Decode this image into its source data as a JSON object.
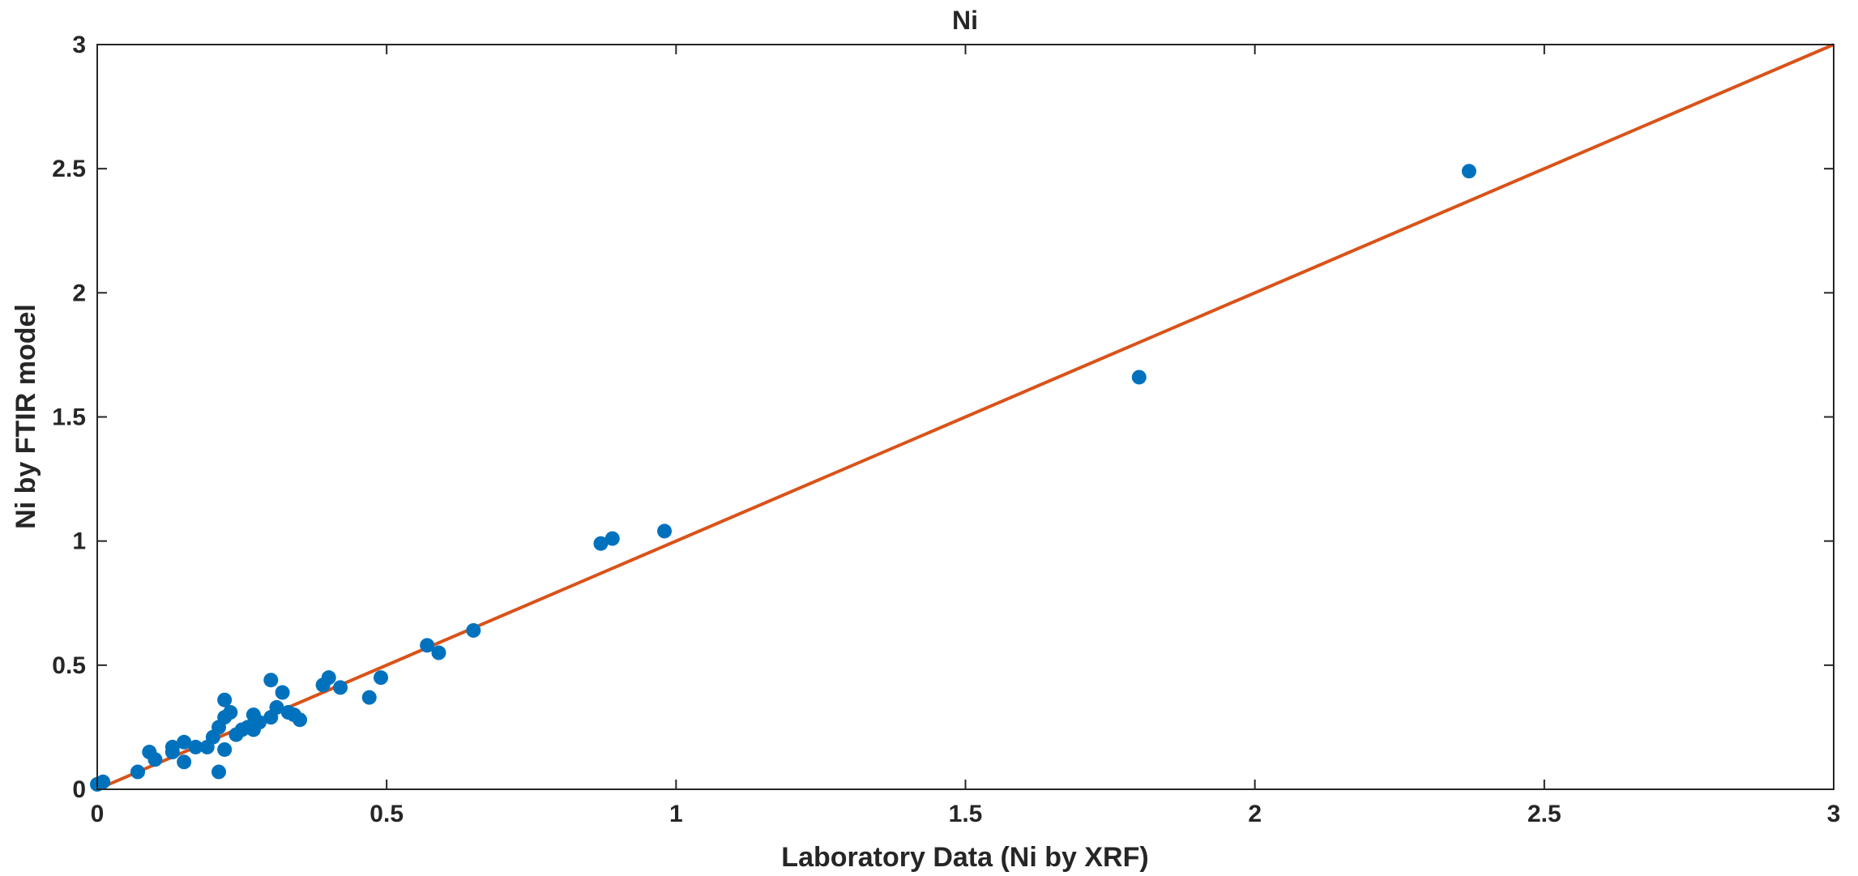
{
  "chart_data": {
    "type": "scatter",
    "title": "Ni",
    "xlabel": "Laboratory Data (Ni by XRF)",
    "ylabel": "Ni by FTIR model",
    "xlim": [
      0,
      3
    ],
    "ylim": [
      0,
      3
    ],
    "xticks": [
      0,
      0.5,
      1,
      1.5,
      2,
      2.5,
      3
    ],
    "xtick_labels": [
      "0",
      "0.5",
      "1",
      "1.5",
      "2",
      "2.5",
      "3"
    ],
    "yticks": [
      0,
      0.5,
      1,
      1.5,
      2,
      2.5,
      3
    ],
    "ytick_labels": [
      "0",
      "0.5",
      "1",
      "1.5",
      "2",
      "2.5",
      "3"
    ],
    "grid": false,
    "colors": {
      "points": "#0072BD",
      "line": "#D95319",
      "axes": "#262626"
    },
    "series": [
      {
        "type": "scatter",
        "points": [
          [
            0.0,
            0.02
          ],
          [
            0.01,
            0.03
          ],
          [
            0.07,
            0.07
          ],
          [
            0.09,
            0.15
          ],
          [
            0.1,
            0.12
          ],
          [
            0.13,
            0.17
          ],
          [
            0.13,
            0.15
          ],
          [
            0.15,
            0.19
          ],
          [
            0.15,
            0.11
          ],
          [
            0.17,
            0.17
          ],
          [
            0.19,
            0.17
          ],
          [
            0.2,
            0.21
          ],
          [
            0.21,
            0.25
          ],
          [
            0.21,
            0.07
          ],
          [
            0.22,
            0.36
          ],
          [
            0.22,
            0.29
          ],
          [
            0.22,
            0.16
          ],
          [
            0.23,
            0.31
          ],
          [
            0.24,
            0.22
          ],
          [
            0.25,
            0.24
          ],
          [
            0.26,
            0.25
          ],
          [
            0.27,
            0.3
          ],
          [
            0.27,
            0.24
          ],
          [
            0.28,
            0.27
          ],
          [
            0.3,
            0.44
          ],
          [
            0.3,
            0.29
          ],
          [
            0.31,
            0.33
          ],
          [
            0.32,
            0.39
          ],
          [
            0.33,
            0.31
          ],
          [
            0.34,
            0.3
          ],
          [
            0.35,
            0.28
          ],
          [
            0.39,
            0.42
          ],
          [
            0.4,
            0.45
          ],
          [
            0.42,
            0.41
          ],
          [
            0.47,
            0.37
          ],
          [
            0.49,
            0.45
          ],
          [
            0.57,
            0.58
          ],
          [
            0.59,
            0.55
          ],
          [
            0.65,
            0.64
          ],
          [
            0.87,
            0.99
          ],
          [
            0.89,
            1.01
          ],
          [
            0.98,
            1.04
          ],
          [
            1.8,
            1.66
          ],
          [
            2.37,
            2.49
          ]
        ]
      },
      {
        "type": "line",
        "points": [
          [
            0,
            0
          ],
          [
            3,
            3
          ]
        ]
      }
    ]
  }
}
